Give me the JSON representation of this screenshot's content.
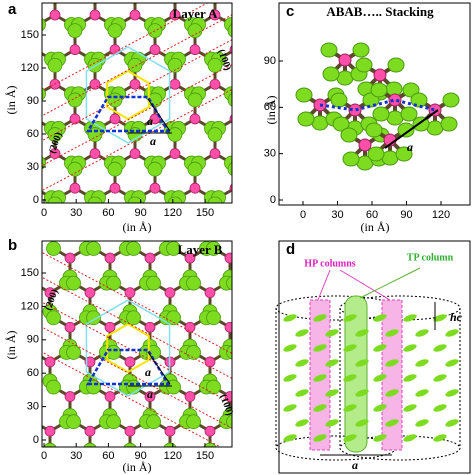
{
  "panels": [
    {
      "label": "a",
      "title": "Layer A",
      "x_axis_label": "(in Å)",
      "y_axis_label": "(in Å)",
      "xticks": [
        0,
        30,
        60,
        90,
        120,
        150
      ],
      "yticks": [
        0,
        30,
        60,
        90,
        120,
        150
      ],
      "annotations": [
        "(100)",
        "(200)",
        "a",
        "a"
      ]
    },
    {
      "label": "b",
      "title": "Layer B",
      "x_axis_label": "(in Å)",
      "y_axis_label": "(in Å)",
      "xticks": [
        0,
        30,
        60,
        90,
        120,
        150
      ],
      "yticks": [
        0,
        30,
        60,
        90,
        120,
        150
      ],
      "annotations": [
        "(200)",
        "(100)",
        "a",
        "a"
      ]
    },
    {
      "label": "c",
      "title": "ABAB….. Stacking",
      "x_axis_label": "(in Å)",
      "y_axis_label": "(in Å)",
      "xticks": [
        0,
        30,
        60,
        90,
        120
      ],
      "yticks": [
        0,
        30,
        60,
        90
      ],
      "annotations": [
        "a"
      ]
    },
    {
      "label": "d",
      "annotations": [
        "HP columns",
        "TP column",
        "hc",
        "a"
      ]
    }
  ]
}
